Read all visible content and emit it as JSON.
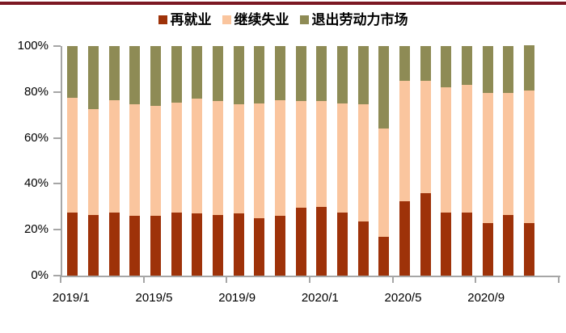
{
  "page": {
    "background": "#FFFFFF",
    "accent_bar_color": "#7C1823",
    "axis_color": "#A6A6A6",
    "text_color": "#000000"
  },
  "chart_data": {
    "type": "bar",
    "stack_mode": "percent-stacked",
    "title": "",
    "grid": false,
    "legend_position": "top",
    "ylim": [
      0,
      100
    ],
    "y_tick_labels": [
      "0%",
      "20%",
      "40%",
      "60%",
      "80%",
      "100%"
    ],
    "x_tick_label_indices": [
      0,
      4,
      8,
      12,
      16,
      20
    ],
    "total_slots": 24,
    "categories": [
      "2019/1",
      "2019/2",
      "2019/3",
      "2019/4",
      "2019/5",
      "2019/6",
      "2019/7",
      "2019/8",
      "2019/9",
      "2019/10",
      "2019/11",
      "2019/12",
      "2020/1",
      "2020/2",
      "2020/3",
      "2020/4",
      "2020/5",
      "2020/6",
      "2020/7",
      "2020/8",
      "2020/9",
      "2020/10",
      "2020/11"
    ],
    "visible_x_labels": [
      "2019/1",
      "2019/5",
      "2019/9",
      "2020/1",
      "2020/5",
      "2020/9"
    ],
    "series": [
      {
        "name": "再就业",
        "color": "#9E3209",
        "values": [
          27.5,
          26.5,
          27.5,
          26,
          26,
          27.5,
          27,
          26.5,
          27,
          25,
          26,
          29.5,
          30,
          27.5,
          23.5,
          17,
          32.5,
          36,
          27.5,
          27.5,
          23,
          26.5,
          23
        ]
      },
      {
        "name": "继续失业",
        "color": "#FAC59E",
        "values": [
          50,
          46,
          49,
          48.5,
          48,
          48,
          50,
          49.5,
          47.5,
          50,
          50.5,
          46.5,
          46,
          47.5,
          51,
          47,
          52.5,
          49,
          54.5,
          55.5,
          56.5,
          53,
          57.5
        ]
      },
      {
        "name": "退出劳动力市场",
        "color": "#8E8B55",
        "values": [
          22.5,
          27.5,
          23.5,
          25.5,
          26,
          24.5,
          23,
          24,
          25.5,
          25,
          23.5,
          24,
          24,
          25,
          25.5,
          36,
          15,
          15,
          18,
          17,
          20.5,
          20.5,
          20
        ]
      }
    ]
  }
}
